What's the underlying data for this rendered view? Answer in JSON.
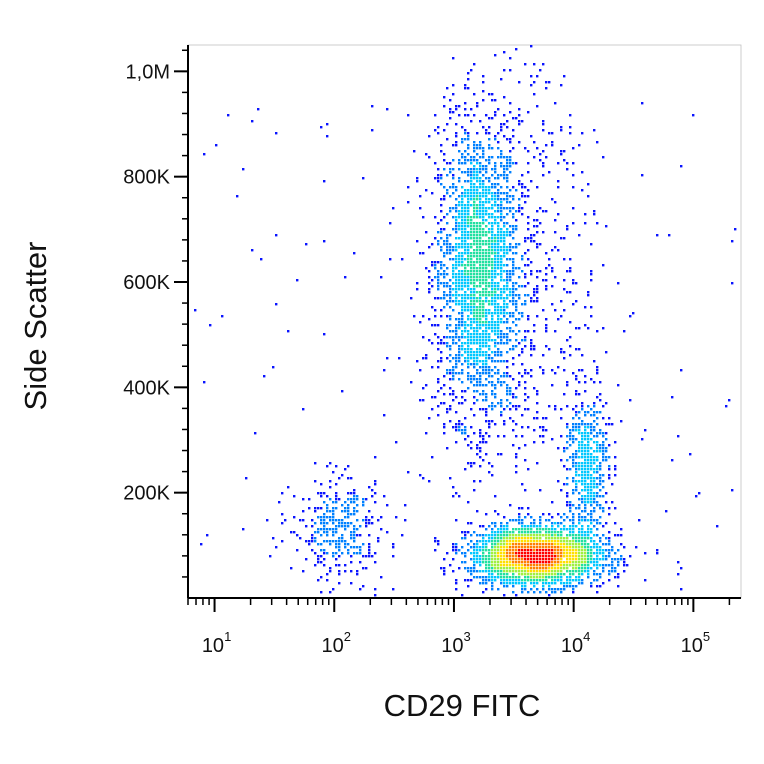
{
  "chart_data": {
    "type": "scatter",
    "subtype": "flow-cytometry density dot plot",
    "title": "",
    "xlabel": "CD29 FITC",
    "ylabel": "Side Scatter",
    "x_scale": "log",
    "xlim": [
      6,
      250000
    ],
    "ylim": [
      0,
      1050000
    ],
    "x_ticks": [
      {
        "value": 10,
        "base": "10",
        "exp": "1"
      },
      {
        "value": 100,
        "base": "10",
        "exp": "2"
      },
      {
        "value": 1000,
        "base": "10",
        "exp": "3"
      },
      {
        "value": 10000,
        "base": "10",
        "exp": "4"
      },
      {
        "value": 100000,
        "base": "10",
        "exp": "5"
      }
    ],
    "y_ticks": [
      {
        "value": 200000,
        "label": "200K"
      },
      {
        "value": 400000,
        "label": "400K"
      },
      {
        "value": 600000,
        "label": "600K"
      },
      {
        "value": 800000,
        "label": "800K"
      },
      {
        "value": 1000000,
        "label": "1,0M"
      }
    ],
    "density_colors": [
      "#0a14ff",
      "#0080ff",
      "#00c8ff",
      "#20e0a0",
      "#a0f040",
      "#ffe000",
      "#ff8000",
      "#ff0000"
    ],
    "populations": [
      {
        "x_center": 1600,
        "y_center": 620000,
        "x_spread_log10": 0.17,
        "y_spread": 140000,
        "weight": 0.34
      },
      {
        "x_center": 5000,
        "y_center": 80000,
        "x_spread_log10": 0.28,
        "y_spread": 28000,
        "weight": 0.4
      },
      {
        "x_center": 13000,
        "y_center": 250000,
        "x_spread_log10": 0.09,
        "y_spread": 70000,
        "weight": 0.08
      },
      {
        "x_center": 110,
        "y_center": 130000,
        "x_spread_log10": 0.2,
        "y_spread": 50000,
        "weight": 0.05
      },
      {
        "x_center": 3200,
        "y_center": 600000,
        "x_spread_log10": 0.35,
        "y_spread": 220000,
        "weight": 0.1
      }
    ],
    "grid": false,
    "legend": "none"
  }
}
